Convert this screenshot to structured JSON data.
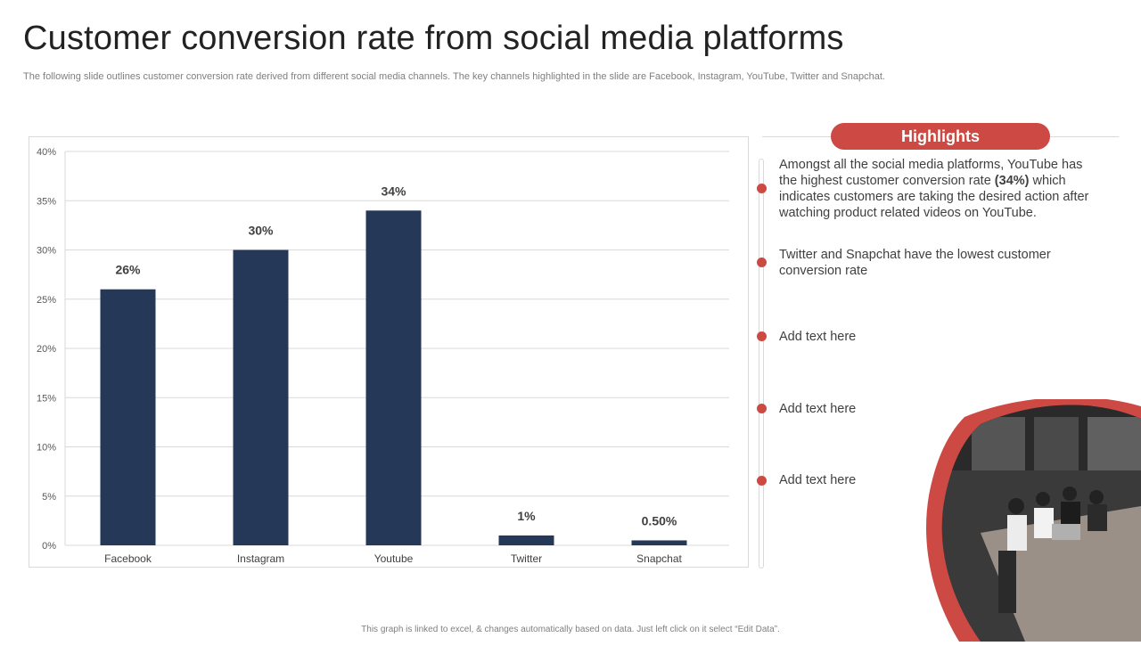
{
  "title": "Customer conversion rate from social media platforms",
  "subtitle": "The following slide outlines customer conversion rate derived from different social media channels. The key channels highlighted in the slide are Facebook, Instagram, YouTube, Twitter and Snapchat.",
  "colors": {
    "bar": "#253858",
    "accent": "#cc4a43",
    "grid": "#d9d9d9"
  },
  "chart_data": {
    "type": "bar",
    "title": "",
    "xlabel": "",
    "ylabel": "",
    "categories": [
      "Facebook",
      "Instagram",
      "Youtube",
      "Twitter",
      "Snapchat"
    ],
    "values": [
      26,
      30,
      34,
      1,
      0.5
    ],
    "data_labels": [
      "26%",
      "30%",
      "34%",
      "1%",
      "0.50%"
    ],
    "ylim": [
      0,
      40
    ],
    "yticks": [
      0,
      5,
      10,
      15,
      20,
      25,
      30,
      35,
      40
    ],
    "ytick_labels": [
      "0%",
      "5%",
      "10%",
      "15%",
      "20%",
      "25%",
      "30%",
      "35%",
      "40%"
    ],
    "grid": true
  },
  "highlights": {
    "heading": "Highlights",
    "item1": {
      "pre": "Amongst all the social media platforms, YouTube has the highest customer conversion rate ",
      "bold": "(34%)",
      "post": " which indicates customers are taking the desired action after watching product related videos on YouTube."
    },
    "item2": "Twitter and Snapchat have the lowest customer conversion rate",
    "item3": "Add text here",
    "item4": "Add text here",
    "item5": "Add text here"
  },
  "footnote": "This graph is linked to excel, & changes automatically based on data. Just left click on it select “Edit Data”."
}
